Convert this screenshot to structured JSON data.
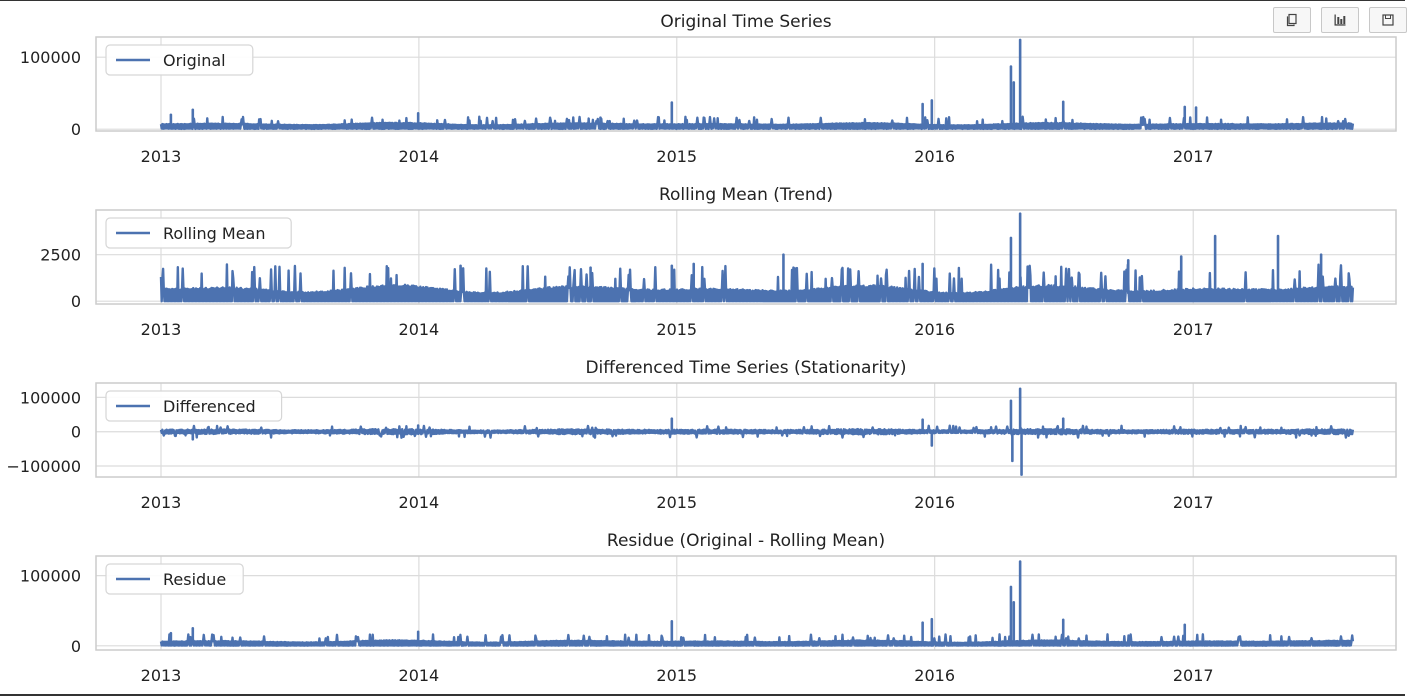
{
  "chart_data": [
    {
      "type": "line",
      "title": "Original Time Series",
      "legend": "Original",
      "legend_placement": "upper-left",
      "grid": true,
      "x_ticks": [
        "2013",
        "2014",
        "2015",
        "2016",
        "2017"
      ],
      "x_range": [
        "2012-10-01",
        "2017-10-15"
      ],
      "x_data_range": [
        "2013-01-01",
        "2017-08-15"
      ],
      "y_ticks": [
        {
          "value": 0,
          "label": "0"
        },
        {
          "value": 100000,
          "label": "100000"
        }
      ],
      "ylim": [
        -2500,
        128000
      ],
      "baseline_low": 2000,
      "baseline_high": 9000,
      "spikes": [
        {
          "date": "2013-01-15",
          "value": 20000
        },
        {
          "date": "2013-02-15",
          "value": 27000
        },
        {
          "date": "2013-12-31",
          "value": 22000
        },
        {
          "date": "2014-09-15",
          "value": 16000
        },
        {
          "date": "2014-12-25",
          "value": 37000
        },
        {
          "date": "2015-12-15",
          "value": 35000
        },
        {
          "date": "2015-12-28",
          "value": 40000
        },
        {
          "date": "2016-04-18",
          "value": 87000
        },
        {
          "date": "2016-04-22",
          "value": 65000
        },
        {
          "date": "2016-05-01",
          "value": 124000
        },
        {
          "date": "2016-07-01",
          "value": 38000
        },
        {
          "date": "2016-12-20",
          "value": 31000
        },
        {
          "date": "2017-01-05",
          "value": 30000
        }
      ],
      "color": "#4c72b0"
    },
    {
      "type": "line",
      "title": "Rolling Mean (Trend)",
      "legend": "Rolling Mean",
      "legend_placement": "upper-left",
      "grid": true,
      "x_ticks": [
        "2013",
        "2014",
        "2015",
        "2016",
        "2017"
      ],
      "x_range": [
        "2012-10-01",
        "2017-10-15"
      ],
      "x_data_range": [
        "2013-01-01",
        "2017-08-15"
      ],
      "y_ticks": [
        {
          "value": 0,
          "label": "0"
        },
        {
          "value": 2500,
          "label": "2500"
        }
      ],
      "ylim": [
        -150,
        4900
      ],
      "baseline_low": 0,
      "baseline_high": 900,
      "spikes": [
        {
          "date": "2014-03-01",
          "value": 1900
        },
        {
          "date": "2014-09-01",
          "value": 1800
        },
        {
          "date": "2014-12-25",
          "value": 1900
        },
        {
          "date": "2015-01-25",
          "value": 2000
        },
        {
          "date": "2015-06-01",
          "value": 2500
        },
        {
          "date": "2015-12-15",
          "value": 2000
        },
        {
          "date": "2016-04-18",
          "value": 3400
        },
        {
          "date": "2016-05-01",
          "value": 4700
        },
        {
          "date": "2016-10-01",
          "value": 2200
        },
        {
          "date": "2016-12-15",
          "value": 2400
        },
        {
          "date": "2017-02-01",
          "value": 3500
        },
        {
          "date": "2017-05-01",
          "value": 3500
        },
        {
          "date": "2017-07-01",
          "value": 2500
        }
      ],
      "color": "#4c72b0"
    },
    {
      "type": "line",
      "title": "Differenced Time Series (Stationarity)",
      "legend": "Differenced",
      "legend_placement": "upper-left",
      "grid": true,
      "x_ticks": [
        "2013",
        "2014",
        "2015",
        "2016",
        "2017"
      ],
      "x_range": [
        "2012-10-01",
        "2017-10-15"
      ],
      "x_data_range": [
        "2013-01-01",
        "2017-08-15"
      ],
      "y_ticks": [
        {
          "value": -100000,
          "label": "−100000"
        },
        {
          "value": 0,
          "label": "0"
        },
        {
          "value": 100000,
          "label": "100000"
        }
      ],
      "ylim": [
        -132000,
        142000
      ],
      "baseline_low": -8000,
      "baseline_high": 8000,
      "spikes": [
        {
          "date": "2013-02-15",
          "value": -22000
        },
        {
          "date": "2013-12-31",
          "value": 18000
        },
        {
          "date": "2014-12-25",
          "value": 38000
        },
        {
          "date": "2015-12-15",
          "value": 35000
        },
        {
          "date": "2015-12-28",
          "value": -40000
        },
        {
          "date": "2016-04-18",
          "value": 90000
        },
        {
          "date": "2016-04-20",
          "value": -85000
        },
        {
          "date": "2016-05-01",
          "value": 125000
        },
        {
          "date": "2016-05-03",
          "value": -125000
        },
        {
          "date": "2016-07-01",
          "value": 38000
        }
      ],
      "color": "#4c72b0"
    },
    {
      "type": "line",
      "title": "Residue (Original - Rolling Mean)",
      "legend": "Residue",
      "legend_placement": "upper-left",
      "grid": true,
      "x_ticks": [
        "2013",
        "2014",
        "2015",
        "2016",
        "2017"
      ],
      "x_range": [
        "2012-10-01",
        "2017-10-15"
      ],
      "x_data_range": [
        "2013-01-01",
        "2017-08-15"
      ],
      "y_ticks": [
        {
          "value": 0,
          "label": "0"
        },
        {
          "value": 100000,
          "label": "100000"
        }
      ],
      "ylim": [
        -6000,
        128000
      ],
      "baseline_low": 1000,
      "baseline_high": 8000,
      "spikes": [
        {
          "date": "2013-01-15",
          "value": 18000
        },
        {
          "date": "2013-02-15",
          "value": 25000
        },
        {
          "date": "2013-12-31",
          "value": 20000
        },
        {
          "date": "2014-12-25",
          "value": 35000
        },
        {
          "date": "2015-12-15",
          "value": 33000
        },
        {
          "date": "2015-12-28",
          "value": 38000
        },
        {
          "date": "2016-04-18",
          "value": 84000
        },
        {
          "date": "2016-04-22",
          "value": 62000
        },
        {
          "date": "2016-05-01",
          "value": 120000
        },
        {
          "date": "2016-07-01",
          "value": 37000
        },
        {
          "date": "2016-12-20",
          "value": 30000
        }
      ],
      "color": "#4c72b0"
    }
  ],
  "toolbar": [
    {
      "name": "copy",
      "icon": "copy-icon"
    },
    {
      "name": "chart",
      "icon": "bar-chart-icon"
    },
    {
      "name": "save",
      "icon": "save-icon"
    }
  ]
}
